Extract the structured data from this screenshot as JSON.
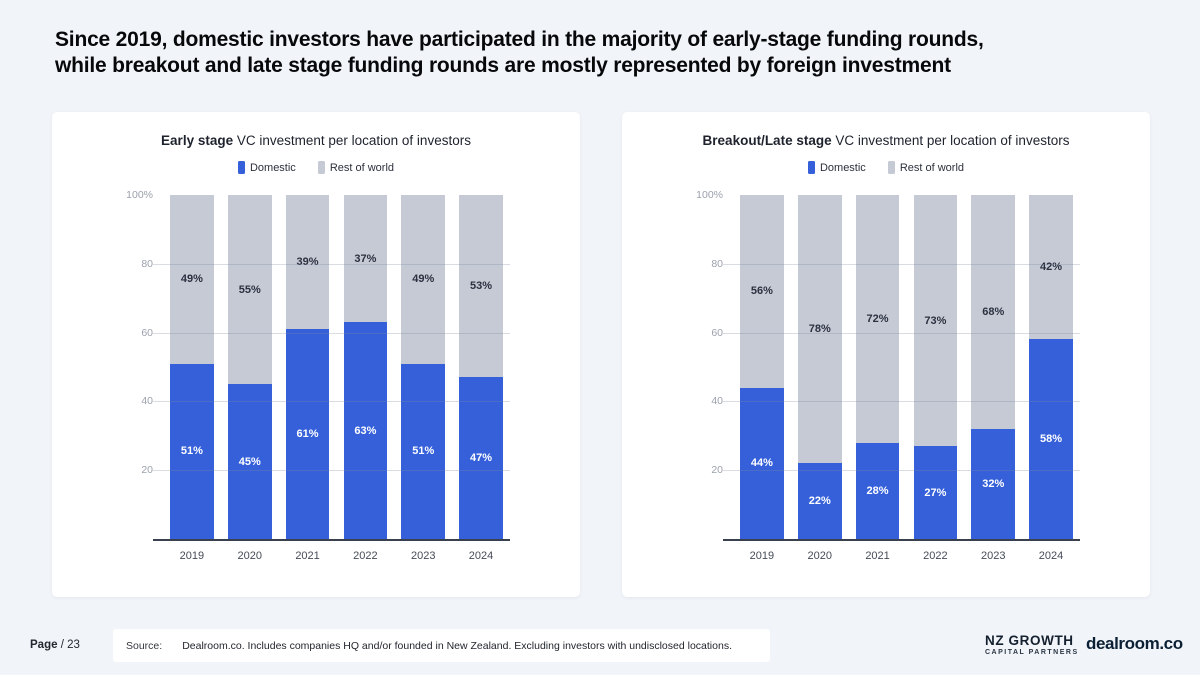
{
  "slide": {
    "title_line1": "Since 2019, domestic investors have participated in the majority of early-stage funding rounds,",
    "title_line2": "while breakout and late stage funding rounds are mostly represented by foreign investment"
  },
  "colors": {
    "domestic": "#3560d9",
    "rest_of_world": "#c5cad5",
    "background": "#f1f4f9",
    "panel": "#ffffff",
    "baseline": "#39404e"
  },
  "chart_data": [
    {
      "type": "bar",
      "stacked": true,
      "title_bold": "Early stage",
      "title_rest": " VC investment per location of investors",
      "categories": [
        "2019",
        "2020",
        "2021",
        "2022",
        "2023",
        "2024"
      ],
      "series": [
        {
          "name": "Domestic",
          "color": "#3560d9",
          "values": [
            51,
            45,
            61,
            63,
            51,
            47
          ]
        },
        {
          "name": "Rest of world",
          "color": "#c5cad5",
          "values": [
            49,
            55,
            39,
            37,
            49,
            53
          ]
        }
      ],
      "ylim": [
        0,
        100
      ],
      "yticks": [
        "100%",
        "80",
        "60",
        "40",
        "20"
      ],
      "grid": true,
      "legend_position": "top",
      "value_suffix": "%"
    },
    {
      "type": "bar",
      "stacked": true,
      "title_bold": "Breakout/Late stage",
      "title_rest": " VC investment per location of investors",
      "categories": [
        "2019",
        "2020",
        "2021",
        "2022",
        "2023",
        "2024"
      ],
      "series": [
        {
          "name": "Domestic",
          "color": "#3560d9",
          "values": [
            44,
            22,
            28,
            27,
            32,
            58
          ]
        },
        {
          "name": "Rest of world",
          "color": "#c5cad5",
          "values": [
            56,
            78,
            72,
            73,
            68,
            42
          ]
        }
      ],
      "ylim": [
        0,
        100
      ],
      "yticks": [
        "100%",
        "80",
        "60",
        "40",
        "20"
      ],
      "grid": true,
      "legend_position": "top",
      "value_suffix": "%"
    }
  ],
  "footer": {
    "page_label": "Page",
    "page_number": "/ 23",
    "source_label": "Source:",
    "source_text": "Dealroom.co. Includes companies HQ and/or founded in New Zealand. Excluding investors with undisclosed locations.",
    "logo_nz_line1": "NZ GROWTH",
    "logo_nz_line2": "CAPITAL PARTNERS",
    "logo_dealroom": "dealroom.co"
  }
}
